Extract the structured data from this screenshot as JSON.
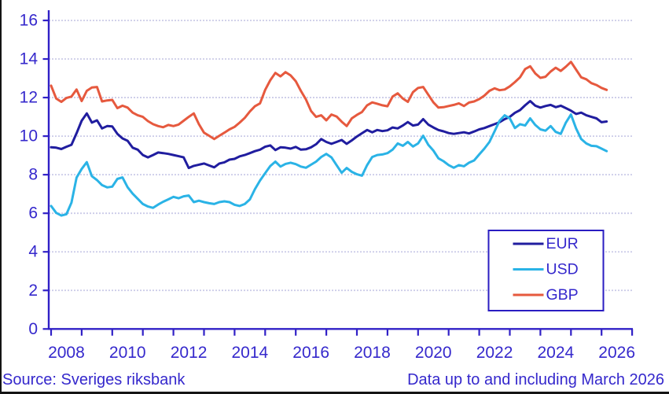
{
  "footer": {
    "source": "Source: Sveriges riksbank",
    "note": "Data up to and including March 2026"
  },
  "colors": {
    "ink": "#3528CC",
    "axis": "#3020C6",
    "grid": "#CBCBE8",
    "page_border": "#141414",
    "legend_border": "#2A1DC2",
    "background": "#FFFFFF"
  },
  "chart_data": {
    "type": "line",
    "x_start": 2008.0,
    "x_step_years": 0.166667,
    "x_end": 2026.1667,
    "x_axis": {
      "tick_years": [
        2008,
        2009,
        2010,
        2011,
        2012,
        2013,
        2014,
        2015,
        2016,
        2017,
        2018,
        2019,
        2020,
        2021,
        2022,
        2023,
        2024,
        2025,
        2026,
        2027
      ],
      "tick_labels": [
        "2008",
        "2010",
        "2012",
        "2014",
        "2016",
        "2018",
        "2020",
        "2022",
        "2024",
        "2026"
      ]
    },
    "y_axis": {
      "min": 0,
      "max": 16,
      "tick_step": 2,
      "ticks": [
        0,
        2,
        4,
        6,
        8,
        10,
        12,
        14,
        16
      ],
      "grid": true
    },
    "legend": {
      "position": "bottom-right",
      "entries": [
        "EUR",
        "USD",
        "GBP"
      ]
    },
    "series": [
      {
        "name": "EUR",
        "color": "#201D9F",
        "values": [
          9.42,
          9.4,
          9.33,
          9.45,
          9.55,
          10.15,
          10.8,
          11.18,
          10.7,
          10.82,
          10.4,
          10.52,
          10.5,
          10.12,
          9.88,
          9.76,
          9.4,
          9.3,
          9.02,
          8.9,
          9.02,
          9.15,
          9.12,
          9.08,
          9.02,
          8.96,
          8.9,
          8.35,
          8.46,
          8.52,
          8.58,
          8.48,
          8.38,
          8.58,
          8.64,
          8.78,
          8.82,
          8.95,
          9.02,
          9.12,
          9.22,
          9.3,
          9.45,
          9.52,
          9.28,
          9.42,
          9.4,
          9.35,
          9.44,
          9.3,
          9.32,
          9.42,
          9.58,
          9.85,
          9.7,
          9.6,
          9.7,
          9.8,
          9.6,
          9.78,
          9.98,
          10.15,
          10.32,
          10.2,
          10.32,
          10.26,
          10.3,
          10.45,
          10.4,
          10.55,
          10.73,
          10.55,
          10.6,
          10.88,
          10.6,
          10.45,
          10.32,
          10.25,
          10.16,
          10.12,
          10.16,
          10.2,
          10.14,
          10.24,
          10.35,
          10.42,
          10.52,
          10.62,
          10.72,
          10.88,
          11.0,
          11.21,
          11.35,
          11.6,
          11.82,
          11.58,
          11.48,
          11.56,
          11.62,
          11.5,
          11.58,
          11.45,
          11.32,
          11.15,
          11.22,
          11.08,
          11.0,
          10.92,
          10.72,
          10.76
        ]
      },
      {
        "name": "USD",
        "color": "#2AB3E6",
        "values": [
          6.38,
          6.02,
          5.88,
          5.95,
          6.55,
          7.85,
          8.3,
          8.65,
          7.92,
          7.72,
          7.46,
          7.34,
          7.38,
          7.78,
          7.86,
          7.35,
          7.02,
          6.75,
          6.48,
          6.35,
          6.28,
          6.45,
          6.6,
          6.72,
          6.85,
          6.78,
          6.88,
          6.92,
          6.58,
          6.65,
          6.58,
          6.52,
          6.48,
          6.58,
          6.62,
          6.58,
          6.44,
          6.38,
          6.48,
          6.72,
          7.25,
          7.7,
          8.08,
          8.45,
          8.68,
          8.42,
          8.56,
          8.62,
          8.55,
          8.42,
          8.36,
          8.52,
          8.68,
          8.92,
          9.08,
          8.9,
          8.5,
          8.1,
          8.35,
          8.15,
          8.02,
          7.95,
          8.5,
          8.92,
          9.02,
          9.05,
          9.12,
          9.3,
          9.62,
          9.5,
          9.7,
          9.46,
          9.62,
          10.02,
          9.55,
          9.25,
          8.85,
          8.7,
          8.5,
          8.36,
          8.5,
          8.44,
          8.62,
          8.74,
          9.05,
          9.35,
          9.7,
          10.25,
          10.8,
          11.08,
          10.92,
          10.42,
          10.62,
          10.55,
          10.92,
          10.58,
          10.35,
          10.28,
          10.52,
          10.22,
          10.12,
          10.7,
          11.12,
          10.4,
          9.85,
          9.62,
          9.5,
          9.48,
          9.35,
          9.22
        ]
      },
      {
        "name": "GBP",
        "color": "#E6593E",
        "values": [
          12.62,
          11.95,
          11.78,
          11.98,
          12.05,
          12.42,
          11.82,
          12.35,
          12.52,
          12.55,
          11.8,
          11.85,
          11.88,
          11.45,
          11.58,
          11.48,
          11.22,
          11.08,
          11.0,
          10.78,
          10.62,
          10.52,
          10.46,
          10.58,
          10.52,
          10.6,
          10.8,
          11.0,
          11.18,
          10.62,
          10.18,
          10.02,
          9.85,
          10.02,
          10.18,
          10.35,
          10.48,
          10.7,
          10.95,
          11.28,
          11.55,
          11.7,
          12.4,
          12.9,
          13.28,
          13.1,
          13.32,
          13.15,
          12.85,
          12.35,
          11.9,
          11.3,
          11.0,
          11.08,
          10.82,
          11.12,
          11.02,
          10.75,
          10.52,
          10.92,
          11.1,
          11.25,
          11.6,
          11.75,
          11.68,
          11.6,
          11.55,
          12.05,
          12.22,
          11.95,
          11.78,
          12.28,
          12.5,
          12.55,
          12.15,
          11.75,
          11.48,
          11.5,
          11.56,
          11.62,
          11.7,
          11.56,
          11.74,
          11.8,
          11.92,
          12.1,
          12.35,
          12.48,
          12.38,
          12.42,
          12.58,
          12.8,
          13.05,
          13.48,
          13.62,
          13.25,
          13.02,
          13.08,
          13.35,
          13.55,
          13.38,
          13.6,
          13.85,
          13.45,
          13.05,
          12.95,
          12.75,
          12.65,
          12.5,
          12.4
        ]
      }
    ]
  }
}
